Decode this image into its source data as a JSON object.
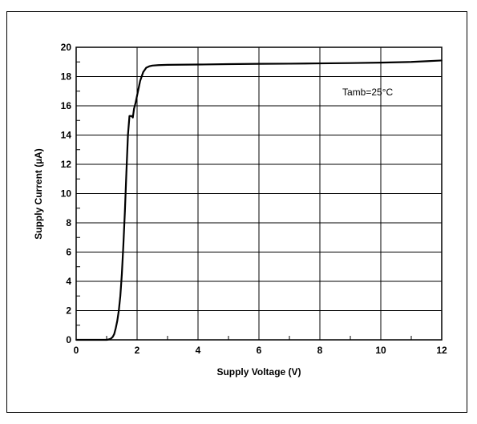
{
  "chart_data": {
    "type": "line",
    "title": "",
    "xlabel": "Supply Voltage (V)",
    "ylabel": "Supply Current (µA)",
    "xlim": [
      0,
      12
    ],
    "ylim": [
      0,
      20
    ],
    "x_ticks": [
      "0",
      "2",
      "4",
      "6",
      "8",
      "10",
      "12"
    ],
    "y_ticks": [
      "0",
      "2",
      "4",
      "6",
      "8",
      "10",
      "12",
      "14",
      "16",
      "18",
      "20"
    ],
    "grid": true,
    "legend": "none",
    "annotation": "Tamb=25°C",
    "line_color": "#000000",
    "series": [
      {
        "x": [
          0,
          0.5,
          1.0,
          1.05,
          1.1,
          1.15,
          1.2,
          1.25,
          1.3,
          1.35,
          1.4,
          1.45,
          1.5,
          1.55,
          1.6,
          1.65,
          1.7,
          1.75,
          1.78,
          1.82,
          1.86,
          1.9,
          1.95,
          2.0,
          2.05,
          2.1,
          2.2,
          2.3,
          2.4,
          2.5,
          2.7,
          3.0,
          4.0,
          5.0,
          6.0,
          7.0,
          8.0,
          9.0,
          10.0,
          11.0,
          11.5,
          12.0
        ],
        "y": [
          0,
          0,
          0,
          0.02,
          0.05,
          0.1,
          0.2,
          0.4,
          0.8,
          1.3,
          2.0,
          3.0,
          4.5,
          6.5,
          8.8,
          11.5,
          14.0,
          15.3,
          15.3,
          15.3,
          15.2,
          15.8,
          16.2,
          16.7,
          17.2,
          17.7,
          18.3,
          18.6,
          18.7,
          18.75,
          18.78,
          18.8,
          18.82,
          18.85,
          18.87,
          18.88,
          18.9,
          18.92,
          18.95,
          19.0,
          19.05,
          19.1
        ]
      }
    ]
  }
}
